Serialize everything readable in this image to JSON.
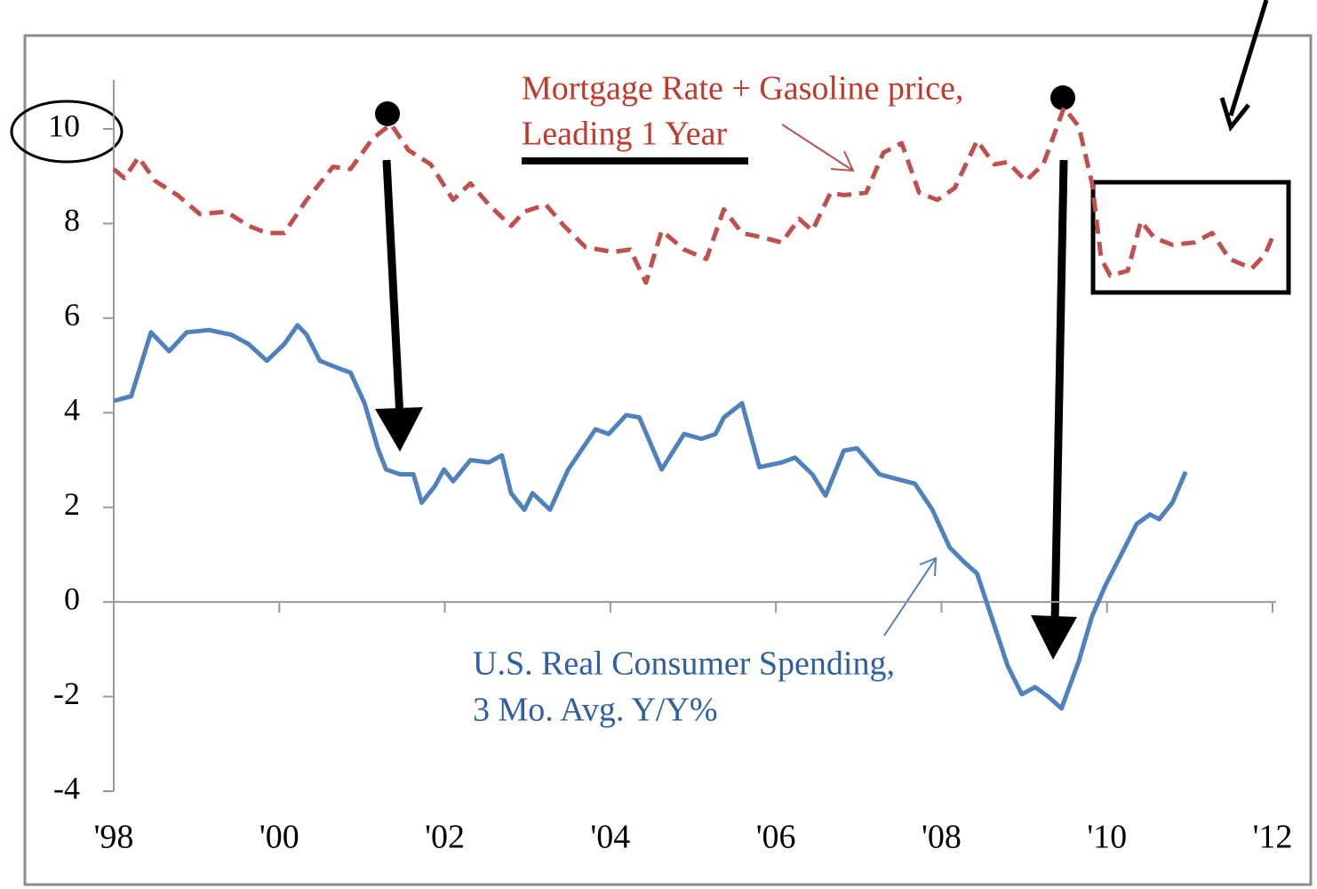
{
  "chart_data": {
    "type": "line",
    "xlim": [
      1998,
      2012
    ],
    "xticks": [
      {
        "value": 1998,
        "label": "'98"
      },
      {
        "value": 2000,
        "label": "'00"
      },
      {
        "value": 2002,
        "label": "'02"
      },
      {
        "value": 2004,
        "label": "'04"
      },
      {
        "value": 2006,
        "label": "'06"
      },
      {
        "value": 2008,
        "label": "'08"
      },
      {
        "value": 2010,
        "label": "'10"
      },
      {
        "value": 2012,
        "label": "'12"
      }
    ],
    "ylim": [
      -4,
      10
    ],
    "yticks": [
      10,
      8,
      6,
      4,
      2,
      0,
      -2,
      -4
    ],
    "annotations": [
      "Mortgage Rate + Gasoline price,",
      "Leading 1 Year",
      "U.S. Real Consumer Spending,",
      "3 Mo. Avg. Y/Y%"
    ],
    "series": [
      {
        "name": "Mortgage Rate + Gasoline price, Leading 1 Year",
        "color": "#c0504d",
        "dashed": true,
        "x": [
          1998.0,
          1998.13,
          1998.3,
          1998.5,
          1998.77,
          1999.04,
          1999.36,
          1999.63,
          1999.85,
          2000.06,
          2000.33,
          2000.65,
          2000.86,
          2001.13,
          2001.35,
          2001.56,
          2001.83,
          2002.1,
          2002.31,
          2002.53,
          2002.8,
          2002.96,
          2003.22,
          2003.44,
          2003.7,
          2004.03,
          2004.24,
          2004.43,
          2004.62,
          2004.89,
          2005.16,
          2005.37,
          2005.59,
          2005.85,
          2006.07,
          2006.28,
          2006.44,
          2006.66,
          2006.82,
          2007.09,
          2007.3,
          2007.52,
          2007.73,
          2007.95,
          2008.16,
          2008.43,
          2008.64,
          2008.8,
          2009.02,
          2009.23,
          2009.48,
          2009.66,
          2009.82,
          2009.93,
          2010.04,
          2010.25,
          2010.41,
          2010.57,
          2010.79,
          2011.06,
          2011.27,
          2011.48,
          2011.75,
          2011.91,
          2012.02
        ],
        "values": [
          9.15,
          8.96,
          9.4,
          8.9,
          8.6,
          8.2,
          8.25,
          7.95,
          7.8,
          7.8,
          8.5,
          9.2,
          9.15,
          9.8,
          10.1,
          9.55,
          9.25,
          8.5,
          8.85,
          8.4,
          7.95,
          8.25,
          8.4,
          7.95,
          7.5,
          7.4,
          7.45,
          6.75,
          7.85,
          7.45,
          7.25,
          8.3,
          7.8,
          7.7,
          7.6,
          8.1,
          7.85,
          8.65,
          8.6,
          8.65,
          9.5,
          9.7,
          8.65,
          8.5,
          8.75,
          9.75,
          9.25,
          9.3,
          8.9,
          9.25,
          10.45,
          10.05,
          8.85,
          7.25,
          6.9,
          7.0,
          8.05,
          7.7,
          7.55,
          7.6,
          7.8,
          7.25,
          7.05,
          7.35,
          7.8
        ]
      },
      {
        "name": "U.S. Real Consumer Spending, 3 Mo. Avg. Y/Y%",
        "color": "#4f81bd",
        "dashed": false,
        "x": [
          1998.0,
          1998.21,
          1998.45,
          1998.67,
          1998.88,
          1999.15,
          1999.42,
          1999.63,
          1999.85,
          2000.06,
          2000.22,
          2000.33,
          2000.49,
          2000.7,
          2000.86,
          2001.03,
          2001.19,
          2001.29,
          2001.46,
          2001.62,
          2001.72,
          2001.88,
          2001.99,
          2002.1,
          2002.31,
          2002.53,
          2002.69,
          2002.8,
          2002.96,
          2003.06,
          2003.27,
          2003.49,
          2003.82,
          2003.98,
          2004.19,
          2004.35,
          2004.62,
          2004.89,
          2005.1,
          2005.27,
          2005.37,
          2005.59,
          2005.8,
          2006.07,
          2006.23,
          2006.44,
          2006.6,
          2006.82,
          2006.98,
          2007.25,
          2007.46,
          2007.68,
          2007.89,
          2008.1,
          2008.27,
          2008.43,
          2008.64,
          2008.8,
          2008.97,
          2009.13,
          2009.29,
          2009.45,
          2009.66,
          2009.82,
          2009.98,
          2010.2,
          2010.36,
          2010.52,
          2010.63,
          2010.79,
          2010.95
        ],
        "values": [
          4.25,
          4.35,
          5.7,
          5.3,
          5.7,
          5.75,
          5.65,
          5.45,
          5.1,
          5.45,
          5.85,
          5.65,
          5.1,
          4.95,
          4.85,
          4.2,
          3.25,
          2.8,
          2.7,
          2.7,
          2.1,
          2.45,
          2.8,
          2.55,
          3.0,
          2.95,
          3.1,
          2.3,
          1.95,
          2.3,
          1.95,
          2.8,
          3.65,
          3.55,
          3.95,
          3.9,
          2.8,
          3.55,
          3.45,
          3.55,
          3.9,
          4.2,
          2.85,
          2.95,
          3.05,
          2.7,
          2.25,
          3.2,
          3.25,
          2.7,
          2.6,
          2.5,
          1.95,
          1.15,
          0.85,
          0.6,
          -0.5,
          -1.35,
          -1.95,
          -1.8,
          -2.0,
          -2.25,
          -1.25,
          -0.3,
          0.35,
          1.1,
          1.65,
          1.85,
          1.75,
          2.1,
          2.75
        ]
      }
    ]
  }
}
